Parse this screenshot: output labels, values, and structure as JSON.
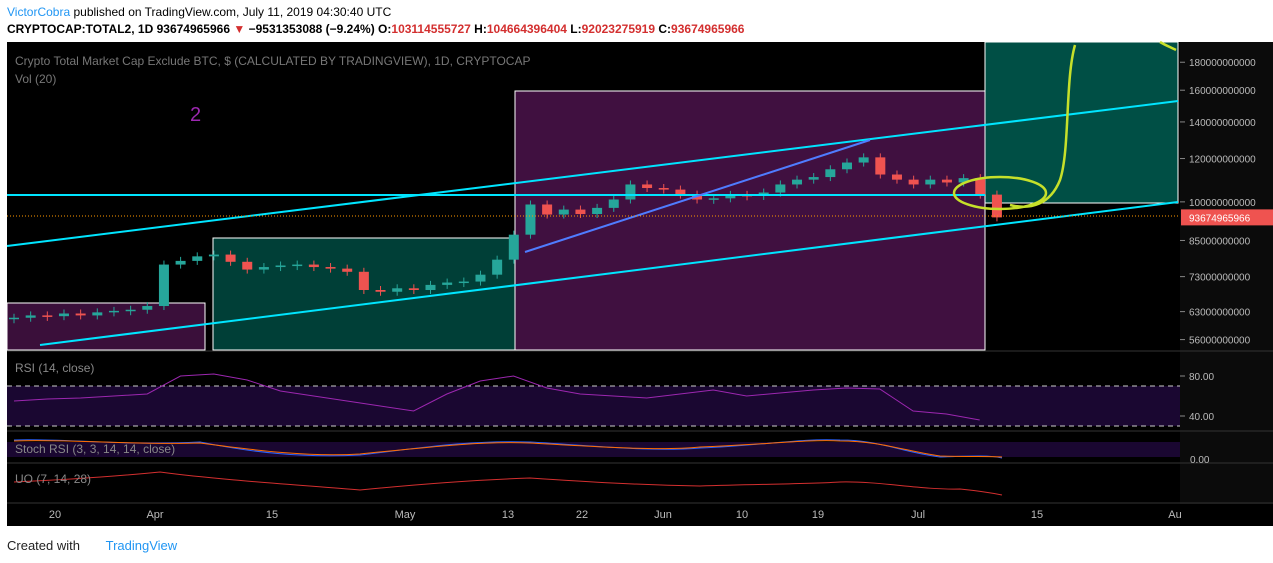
{
  "header": {
    "author": "VictorCobra",
    "published": "published on TradingView.com, July 11, 2019 04:30:40 UTC",
    "symbol": "CRYPTOCAP:TOTAL2, 1D",
    "price": "93674965966",
    "arrow": "▼",
    "change": "−9531353088 (−9.24%)",
    "o_label": "O:",
    "open": "103114555727",
    "h_label": "H:",
    "high": "104664396404",
    "l_label": "L:",
    "low": "92023275919",
    "c_label": "C:",
    "close": "93674965966"
  },
  "chart": {
    "title": "Crypto Total Market Cap Exclude BTC, $ (CALCULATED BY TRADINGVIEW), 1D, CRYPTOCAP",
    "volume_label": "Vol (20)",
    "annotation": "2",
    "ylim": [
      53600000000,
      196000000000
    ],
    "log": true,
    "yticks": [
      180000000000,
      160000000000,
      140000000000,
      120000000000,
      100000000000,
      85000000000,
      73000000000,
      63000000000,
      56000000000
    ],
    "last": 93674965966,
    "up_color": "#26a69a",
    "down_color": "#ef5350",
    "closes": [
      61400000000,
      62000000000,
      61800000000,
      62500000000,
      62000000000,
      62800000000,
      63200000000,
      63500000000,
      64500000000,
      76800000000,
      78000000000,
      79500000000,
      80100000000,
      77700000000,
      75200000000,
      76000000000,
      76500000000,
      76800000000,
      76000000000,
      75500000000,
      74500000000,
      69000000000,
      68500000000,
      69500000000,
      69000000000,
      70500000000,
      71200000000,
      71500000000,
      73600000000,
      78400000000,
      87100000000,
      98900000000,
      94800000000,
      96800000000,
      95000000000,
      97500000000,
      101000000000,
      107600000000,
      106000000000,
      105300000000,
      103100000000,
      101000000000,
      101500000000,
      103000000000,
      102500000000,
      104000000000,
      107600000000,
      109800000000,
      111000000000,
      114700000000,
      118000000000,
      120600000000,
      112200000000,
      109800000000,
      107600000000,
      109800000000,
      108500000000,
      110500000000,
      103100000000,
      93674965966
    ],
    "dates": [
      "20",
      "Apr",
      "15",
      "May",
      "13",
      "22",
      "Jun",
      "10",
      "19",
      "Jul",
      "15",
      "Au"
    ]
  },
  "rsi": {
    "label": "RSI (14, close)",
    "ylim": [
      26,
      104
    ],
    "yticks": [
      {
        "value": 80,
        "label": "80.00"
      },
      {
        "value": 40,
        "label": "40.00"
      }
    ],
    "bands": [
      70,
      30
    ],
    "color": "#9c27b0",
    "values": [
      55,
      57,
      58,
      60,
      62,
      80,
      82,
      76,
      65,
      60,
      55,
      50,
      45,
      62,
      75,
      80,
      68,
      62,
      60,
      58,
      62,
      66,
      60,
      63,
      66,
      68,
      67,
      45,
      42,
      36
    ]
  },
  "stoch": {
    "label": "Stoch RSI (3, 3, 14, 14, close)",
    "ytick": {
      "value": 0,
      "label": "0.00"
    }
  },
  "uo": {
    "label": "UO (7, 14, 28)"
  },
  "footer": {
    "created": "Created with",
    "brand": "TradingView"
  }
}
